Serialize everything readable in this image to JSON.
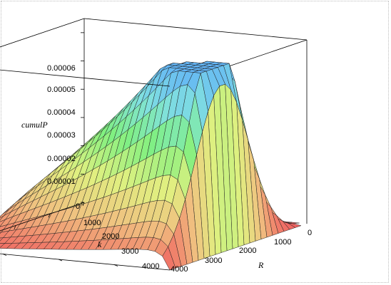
{
  "chart_data": {
    "type": "surface3d",
    "title": "",
    "xlabel": "R",
    "ylabel": "k",
    "zlabel": "cumulP",
    "x_range": [
      0,
      4000
    ],
    "y_range": [
      0,
      4000
    ],
    "z_range": [
      0,
      6.5e-05
    ],
    "x_ticks": [
      "0",
      "1000",
      "2000",
      "3000",
      "4000"
    ],
    "y_ticks": [
      "1000",
      "2000",
      "3000",
      "4000"
    ],
    "z_ticks": [
      "0",
      "0.00001",
      "0.00002",
      "0.00003",
      "0.00004",
      "0.00005",
      "0.00006"
    ],
    "colormap": [
      "#f06060",
      "#f0c080",
      "#e0f080",
      "#80f080",
      "#80e0e0",
      "#60b0f8"
    ],
    "grid": true
  }
}
